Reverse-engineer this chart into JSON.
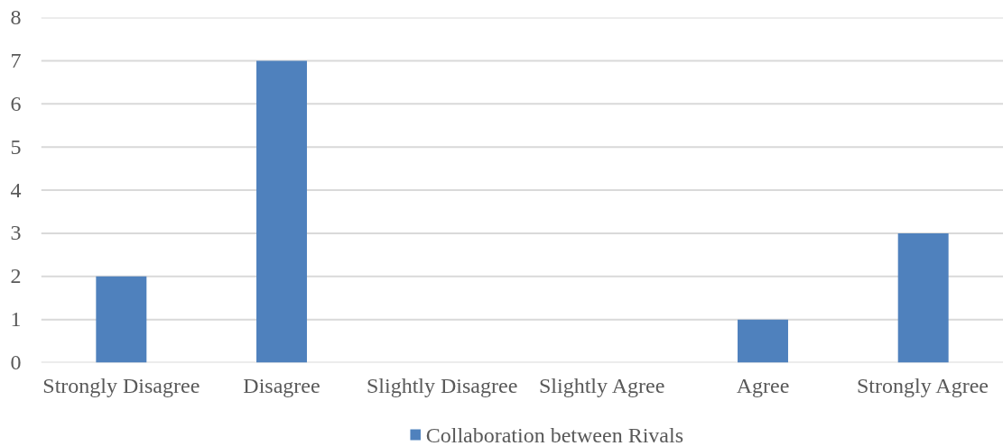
{
  "chart_data": {
    "type": "bar",
    "categories": [
      "Strongly Disagree",
      "Disagree",
      "Slightly Disagree",
      "Slightly Agree",
      "Agree",
      "Strongly Agree"
    ],
    "series": [
      {
        "name": "Collaboration between Rivals",
        "color": "#4f81bd",
        "values": [
          2,
          7,
          0,
          0,
          1,
          3
        ]
      }
    ],
    "ylim": [
      0,
      8
    ],
    "yticks": [
      0,
      1,
      2,
      3,
      4,
      5,
      6,
      7,
      8
    ],
    "grid": "y",
    "legend": "bottom"
  }
}
